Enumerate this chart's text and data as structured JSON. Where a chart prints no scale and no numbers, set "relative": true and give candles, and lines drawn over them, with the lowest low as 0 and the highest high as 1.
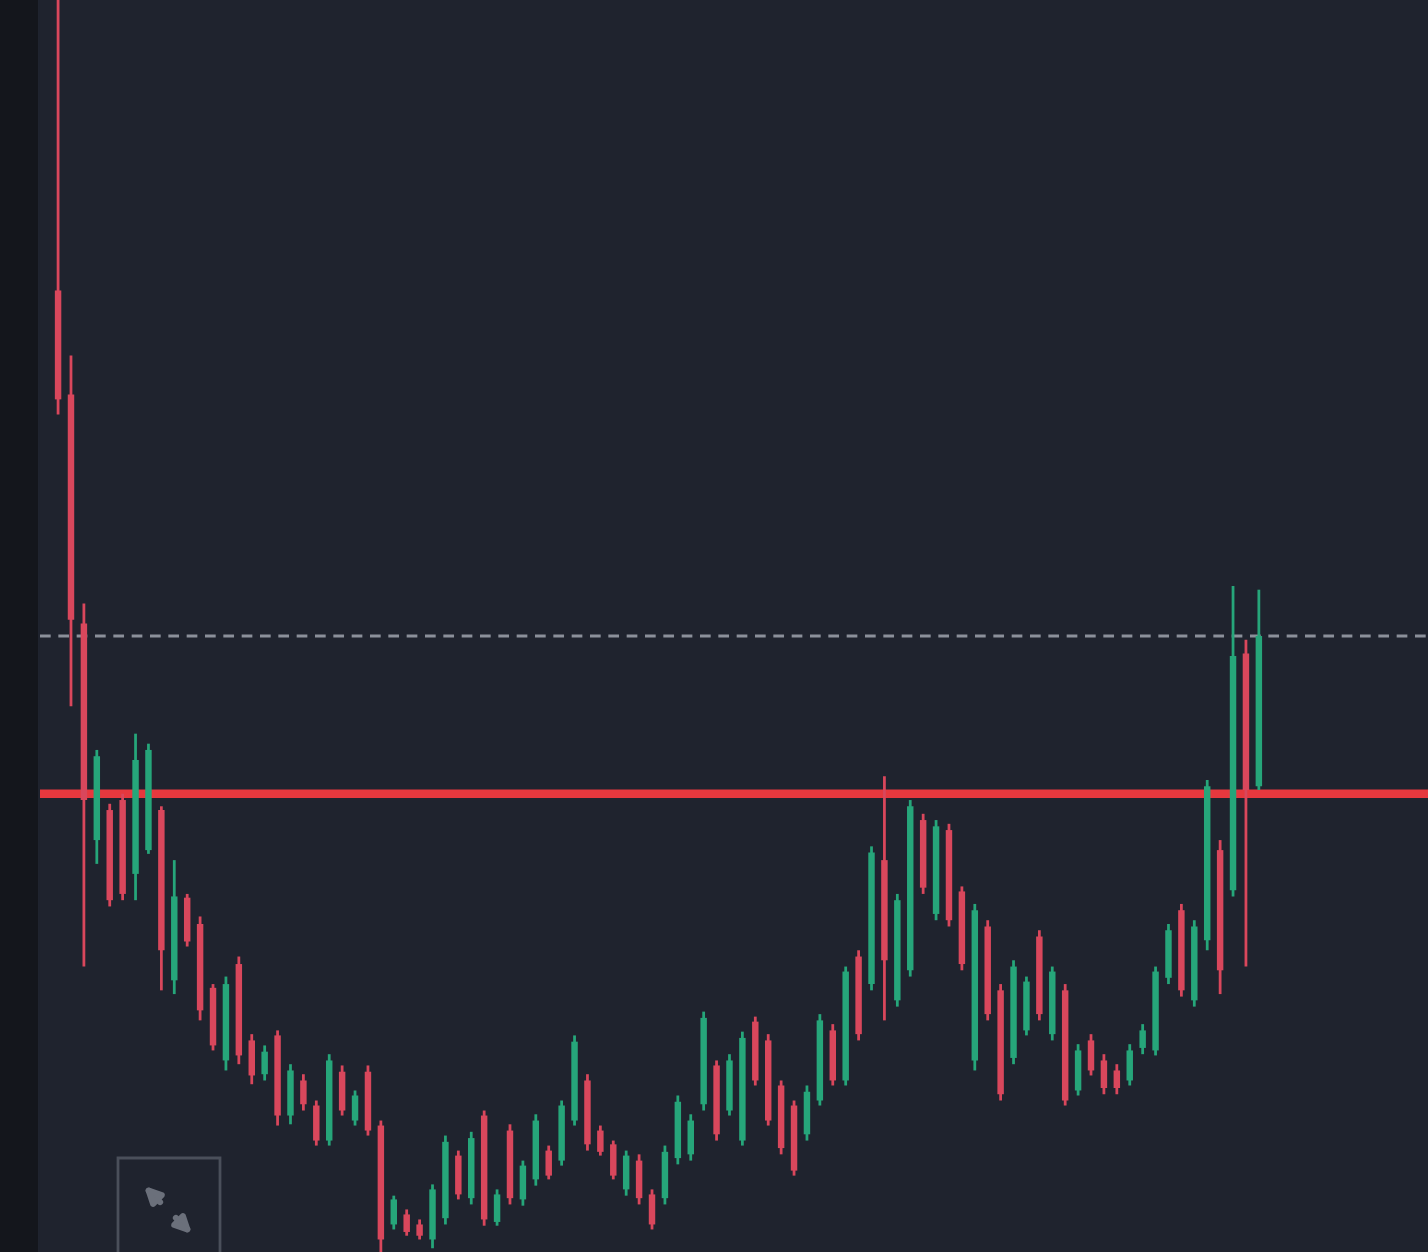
{
  "chart_data": {
    "type": "candlestick",
    "relative": true,
    "categories": [
      null,
      null,
      null,
      null,
      null,
      null,
      null,
      null,
      null,
      null,
      null,
      null,
      null,
      null,
      null,
      null,
      null,
      null,
      null,
      null,
      null,
      null,
      null,
      null,
      null,
      null,
      null,
      null,
      null,
      null,
      null,
      null,
      null,
      null,
      null,
      null,
      null,
      null,
      null,
      null,
      null,
      null,
      null,
      null,
      null,
      null,
      null,
      null,
      null,
      null,
      null,
      null,
      null,
      null,
      null,
      null,
      null,
      null,
      null,
      null,
      null,
      null,
      null,
      null,
      null,
      null,
      null,
      null,
      null,
      null,
      null,
      null,
      null,
      null,
      null,
      null,
      null,
      null,
      null,
      null,
      null,
      null,
      null,
      null,
      null,
      null,
      null,
      null,
      null,
      null,
      null,
      null,
      null,
      null
    ],
    "ohlc": [
      [
        0.768,
        1.0,
        0.669,
        0.681
      ],
      [
        0.685,
        0.716,
        0.436,
        0.505
      ],
      [
        0.502,
        0.518,
        0.228,
        0.361
      ],
      [
        0.329,
        0.401,
        0.31,
        0.396
      ],
      [
        0.353,
        0.358,
        0.276,
        0.281
      ],
      [
        0.361,
        0.366,
        0.281,
        0.286
      ],
      [
        0.302,
        0.414,
        0.281,
        0.393
      ],
      [
        0.321,
        0.406,
        0.318,
        0.401
      ],
      [
        0.353,
        0.356,
        0.209,
        0.241
      ],
      [
        0.217,
        0.313,
        0.206,
        0.284
      ],
      [
        0.283,
        0.286,
        0.244,
        0.248
      ],
      [
        0.262,
        0.268,
        0.185,
        0.193
      ],
      [
        0.211,
        0.214,
        0.161,
        0.165
      ],
      [
        0.153,
        0.22,
        0.145,
        0.214
      ],
      [
        0.23,
        0.236,
        0.15,
        0.157
      ],
      [
        0.169,
        0.174,
        0.134,
        0.141
      ],
      [
        0.142,
        0.165,
        0.137,
        0.16
      ],
      [
        0.173,
        0.177,
        0.101,
        0.109
      ],
      [
        0.109,
        0.15,
        0.102,
        0.145
      ],
      [
        0.137,
        0.142,
        0.113,
        0.118
      ],
      [
        0.117,
        0.121,
        0.085,
        0.089
      ],
      [
        0.089,
        0.158,
        0.085,
        0.153
      ],
      [
        0.144,
        0.149,
        0.109,
        0.113
      ],
      [
        0.105,
        0.129,
        0.101,
        0.125
      ],
      [
        0.144,
        0.149,
        0.093,
        0.097
      ],
      [
        0.101,
        0.105,
        0.0,
        0.01
      ],
      [
        0.022,
        0.045,
        0.018,
        0.042
      ],
      [
        0.03,
        0.034,
        0.013,
        0.016
      ],
      [
        0.022,
        0.026,
        0.01,
        0.013
      ],
      [
        0.01,
        0.054,
        0.003,
        0.05
      ],
      [
        0.027,
        0.093,
        0.022,
        0.088
      ],
      [
        0.077,
        0.081,
        0.042,
        0.046
      ],
      [
        0.043,
        0.096,
        0.038,
        0.091
      ],
      [
        0.109,
        0.113,
        0.021,
        0.026
      ],
      [
        0.024,
        0.05,
        0.021,
        0.046
      ],
      [
        0.097,
        0.102,
        0.038,
        0.043
      ],
      [
        0.042,
        0.073,
        0.037,
        0.069
      ],
      [
        0.058,
        0.11,
        0.053,
        0.105
      ],
      [
        0.081,
        0.085,
        0.058,
        0.061
      ],
      [
        0.073,
        0.121,
        0.069,
        0.117
      ],
      [
        0.105,
        0.173,
        0.101,
        0.168
      ],
      [
        0.137,
        0.142,
        0.081,
        0.086
      ],
      [
        0.097,
        0.101,
        0.077,
        0.08
      ],
      [
        0.086,
        0.089,
        0.058,
        0.061
      ],
      [
        0.05,
        0.081,
        0.045,
        0.077
      ],
      [
        0.073,
        0.078,
        0.038,
        0.043
      ],
      [
        0.046,
        0.05,
        0.018,
        0.022
      ],
      [
        0.043,
        0.085,
        0.038,
        0.08
      ],
      [
        0.075,
        0.125,
        0.07,
        0.12
      ],
      [
        0.078,
        0.11,
        0.073,
        0.105
      ],
      [
        0.118,
        0.192,
        0.113,
        0.187
      ],
      [
        0.149,
        0.153,
        0.089,
        0.094
      ],
      [
        0.113,
        0.158,
        0.109,
        0.153
      ],
      [
        0.089,
        0.176,
        0.085,
        0.171
      ],
      [
        0.184,
        0.188,
        0.133,
        0.137
      ],
      [
        0.169,
        0.174,
        0.101,
        0.105
      ],
      [
        0.133,
        0.137,
        0.078,
        0.083
      ],
      [
        0.117,
        0.121,
        0.061,
        0.065
      ],
      [
        0.094,
        0.133,
        0.089,
        0.128
      ],
      [
        0.121,
        0.19,
        0.117,
        0.185
      ],
      [
        0.177,
        0.182,
        0.133,
        0.137
      ],
      [
        0.137,
        0.228,
        0.133,
        0.224
      ],
      [
        0.236,
        0.241,
        0.169,
        0.174
      ],
      [
        0.214,
        0.324,
        0.209,
        0.319
      ],
      [
        0.313,
        0.38,
        0.185,
        0.233
      ],
      [
        0.201,
        0.286,
        0.196,
        0.281
      ],
      [
        0.225,
        0.361,
        0.22,
        0.356
      ],
      [
        0.345,
        0.35,
        0.286,
        0.291
      ],
      [
        0.27,
        0.345,
        0.265,
        0.34
      ],
      [
        0.337,
        0.342,
        0.26,
        0.265
      ],
      [
        0.288,
        0.292,
        0.225,
        0.23
      ],
      [
        0.153,
        0.278,
        0.145,
        0.273
      ],
      [
        0.26,
        0.265,
        0.185,
        0.19
      ],
      [
        0.209,
        0.214,
        0.121,
        0.126
      ],
      [
        0.155,
        0.233,
        0.15,
        0.228
      ],
      [
        0.177,
        0.22,
        0.173,
        0.216
      ],
      [
        0.252,
        0.257,
        0.185,
        0.19
      ],
      [
        0.174,
        0.228,
        0.169,
        0.224
      ],
      [
        0.209,
        0.214,
        0.117,
        0.121
      ],
      [
        0.129,
        0.166,
        0.125,
        0.161
      ],
      [
        0.169,
        0.174,
        0.141,
        0.145
      ],
      [
        0.153,
        0.158,
        0.126,
        0.131
      ],
      [
        0.145,
        0.15,
        0.126,
        0.131
      ],
      [
        0.137,
        0.166,
        0.133,
        0.161
      ],
      [
        0.163,
        0.182,
        0.158,
        0.177
      ],
      [
        0.161,
        0.228,
        0.157,
        0.224
      ],
      [
        0.219,
        0.262,
        0.214,
        0.257
      ],
      [
        0.273,
        0.278,
        0.204,
        0.209
      ],
      [
        0.201,
        0.265,
        0.196,
        0.26
      ],
      [
        0.249,
        0.377,
        0.241,
        0.372
      ],
      [
        0.321,
        0.329,
        0.206,
        0.225
      ],
      [
        0.289,
        0.532,
        0.284,
        0.476
      ],
      [
        0.478,
        0.489,
        0.228,
        0.369
      ],
      [
        0.372,
        0.529,
        0.369,
        0.492
      ]
    ],
    "colors": [
      "#d9475c",
      "#d9475c",
      "#d9475c",
      "#26a67a",
      "#d9475c",
      "#d9475c",
      "#26a67a",
      "#26a67a",
      "#d9475c",
      "#26a67a",
      "#d9475c",
      "#d9475c",
      "#d9475c",
      "#26a67a",
      "#d9475c",
      "#d9475c",
      "#26a67a",
      "#d9475c",
      "#26a67a",
      "#d9475c",
      "#d9475c",
      "#26a67a",
      "#d9475c",
      "#26a67a",
      "#d9475c",
      "#d9475c",
      "#26a67a",
      "#d9475c",
      "#d9475c",
      "#26a67a",
      "#26a67a",
      "#d9475c",
      "#26a67a",
      "#d9475c",
      "#26a67a",
      "#d9475c",
      "#26a67a",
      "#26a67a",
      "#d9475c",
      "#26a67a",
      "#26a67a",
      "#d9475c",
      "#d9475c",
      "#d9475c",
      "#26a67a",
      "#d9475c",
      "#d9475c",
      "#26a67a",
      "#26a67a",
      "#26a67a",
      "#26a67a",
      "#d9475c",
      "#26a67a",
      "#26a67a",
      "#d9475c",
      "#d9475c",
      "#d9475c",
      "#d9475c",
      "#26a67a",
      "#26a67a",
      "#d9475c",
      "#26a67a",
      "#d9475c",
      "#26a67a",
      "#d9475c",
      "#26a67a",
      "#26a67a",
      "#d9475c",
      "#26a67a",
      "#d9475c",
      "#d9475c",
      "#26a67a",
      "#d9475c",
      "#d9475c",
      "#26a67a",
      "#26a67a",
      "#d9475c",
      "#26a67a",
      "#d9475c",
      "#26a67a",
      "#d9475c",
      "#d9475c",
      "#d9475c",
      "#26a67a",
      "#26a67a",
      "#26a67a",
      "#26a67a",
      "#d9475c",
      "#26a67a",
      "#26a67a",
      "#d9475c",
      "#26a67a",
      "#d9475c",
      "#26a67a"
    ],
    "ref_lines": [
      {
        "axis": "y",
        "value": 0.366,
        "color": "#e6383e"
      },
      {
        "axis": "y",
        "value": 0.492,
        "color": "#8b909a",
        "line_style": "dashed"
      }
    ]
  }
}
